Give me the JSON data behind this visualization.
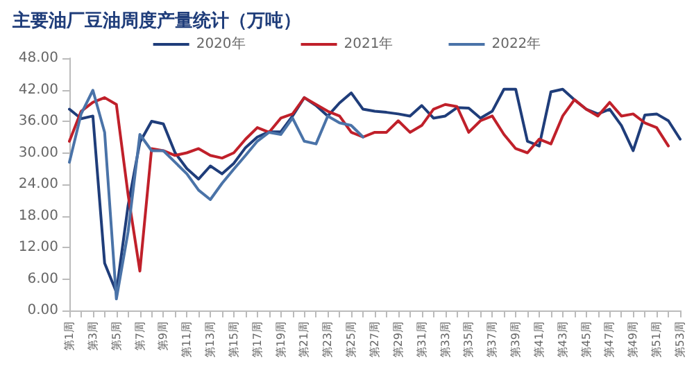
{
  "chart_data": {
    "type": "line",
    "title": "主要油厂豆油周度产量统计（万吨）",
    "categories": [
      "第1周",
      null,
      "第3周",
      null,
      "第5周",
      null,
      "第7周",
      null,
      "第9周",
      null,
      "第11周",
      null,
      "第13周",
      null,
      "第15周",
      null,
      "第17周",
      null,
      "第19周",
      null,
      "第21周",
      null,
      "第23周",
      null,
      "第25周",
      null,
      "第27周",
      null,
      "第29周",
      null,
      "第31周",
      null,
      "第33周",
      null,
      "第35周",
      null,
      "第37周",
      null,
      "第39周",
      null,
      "第41周",
      null,
      "第43周",
      null,
      "第45周",
      null,
      "第47周",
      null,
      "第49周",
      null,
      "第51周",
      null,
      "第53周"
    ],
    "series": [
      {
        "name": "2020年",
        "color": "#1f3d7a",
        "values": [
          38.3,
          36.5,
          37,
          9,
          3.5,
          20,
          32,
          36,
          35.5,
          30,
          27,
          25,
          27.5,
          26,
          28,
          31,
          33,
          34,
          34,
          37,
          40.5,
          39,
          37,
          39.5,
          41.4,
          38.3,
          37.9,
          37.7,
          37.4,
          37,
          39,
          36.6,
          37,
          38.6,
          38.5,
          36.6,
          37.9,
          42.1,
          42.1,
          32.2,
          31.3,
          41.6,
          42.1,
          40.1,
          38.3,
          37.4,
          38.3,
          35.2,
          30.4,
          37.2,
          37.4,
          36.1,
          32.6
        ]
      },
      {
        "name": "2021年",
        "color": "#c0202a",
        "values": [
          32.2,
          37.9,
          39.6,
          40.5,
          39.2,
          22,
          7.5,
          30.8,
          30.4,
          29.5,
          30,
          30.8,
          29.5,
          29,
          30,
          32.6,
          34.8,
          33.9,
          36.6,
          37.4,
          40.5,
          39.2,
          37.9,
          37,
          33.9,
          33,
          33.9,
          33.9,
          36.1,
          33.9,
          35.2,
          38.3,
          39.2,
          38.8,
          33.9,
          36.1,
          37,
          33.5,
          30.8,
          30,
          32.6,
          31.7,
          37,
          40.1,
          38.3,
          37,
          39.6,
          37,
          37.4,
          35.7,
          34.8,
          31.3,
          null
        ]
      },
      {
        "name": "2022年",
        "color": "#4a73a8",
        "values": [
          28.2,
          37.4,
          41.9,
          33.9,
          2.2,
          15,
          33.5,
          30.4,
          30.4,
          28.2,
          26,
          22.9,
          21.1,
          24.2,
          26.9,
          29.5,
          32.2,
          33.9,
          33.5,
          36.6,
          32.2,
          31.7,
          37,
          35.7,
          35.2,
          33,
          null,
          null,
          null,
          null,
          null,
          null,
          null,
          null,
          null,
          null,
          null,
          null,
          null,
          null,
          null,
          null,
          null,
          null,
          null,
          null,
          null,
          null,
          null,
          null,
          null,
          null,
          null
        ]
      }
    ],
    "ylim": [
      0,
      48
    ],
    "yticks": [
      {
        "value": 0,
        "label": "0.00"
      },
      {
        "value": 6,
        "label": "6.00"
      },
      {
        "value": 12,
        "label": "12.00"
      },
      {
        "value": 18,
        "label": "18.00"
      },
      {
        "value": 24,
        "label": "24.00"
      },
      {
        "value": 30,
        "label": "30.00"
      },
      {
        "value": 36,
        "label": "36.00"
      },
      {
        "value": 42,
        "label": "42.00"
      },
      {
        "value": 48,
        "label": "48.00"
      }
    ],
    "grid": false,
    "legend": "top",
    "marker": "none",
    "line_style": "solid"
  }
}
